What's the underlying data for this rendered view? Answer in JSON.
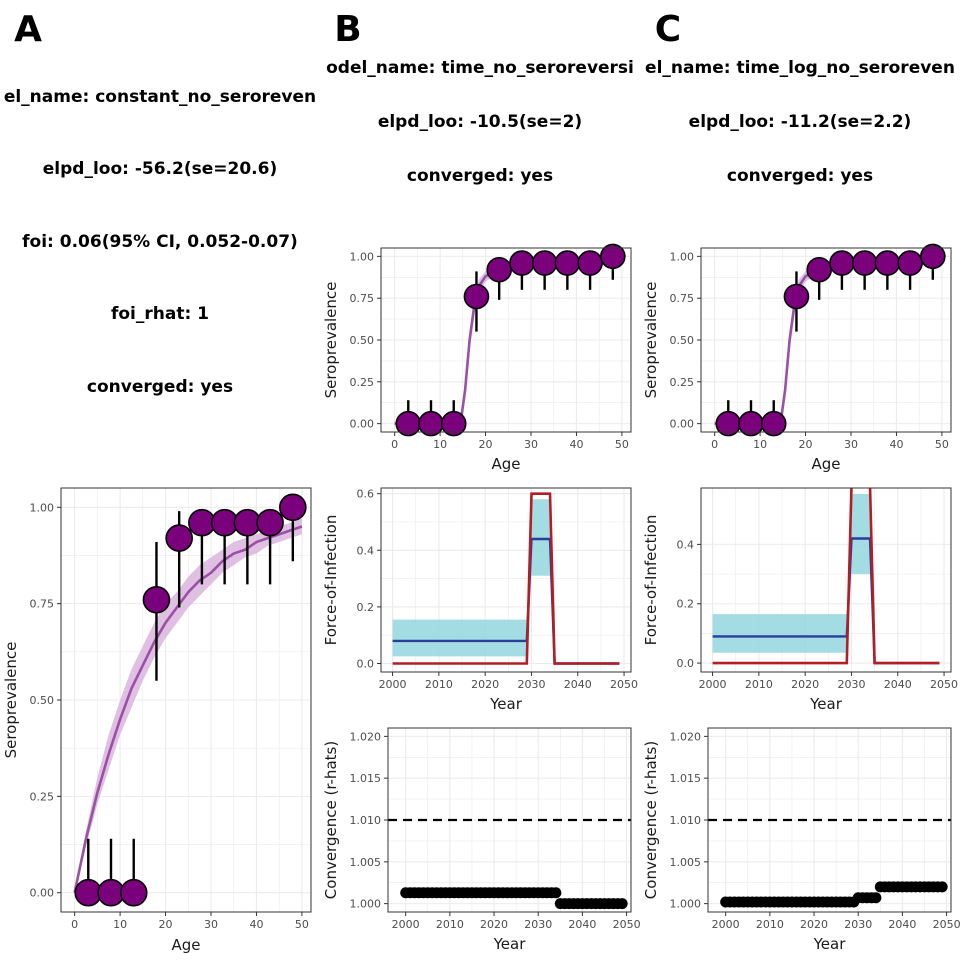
{
  "panels": [
    {
      "letter": "A",
      "info": [
        "el_name: constant_no_seroreven",
        "elpd_loo: -56.2(se=20.6)",
        "foi: 0.06(95% CI, 0.052-0.07)",
        "foi_rhat: 1",
        "converged: yes"
      ]
    },
    {
      "letter": "B",
      "info": [
        "odel_name: time_no_seroreversi",
        "elpd_loo: -10.5(se=2)",
        "converged: yes"
      ]
    },
    {
      "letter": "C",
      "info": [
        "el_name: time_log_no_seroreven",
        "elpd_loo: -11.2(se=2.2)",
        "converged: yes"
      ]
    }
  ],
  "colors": {
    "point_fill": "#7b007b",
    "fit_line": "#9b4fa5",
    "fit_ribbon": "#d9b5de",
    "foi_est": "#2a3d9a",
    "foi_ci": "#99d8e0",
    "foi_true": "#b21e24",
    "grid": "#ebebeb"
  },
  "chart_data": [
    {
      "id": "A-seroprevalence",
      "type": "scatter",
      "xlabel": "Age",
      "ylabel": "Seroprevalence",
      "xlim": [
        -3,
        52
      ],
      "ylim": [
        -0.05,
        1.05
      ],
      "xticks": [
        0,
        10,
        20,
        30,
        40,
        50
      ],
      "yticks": [
        0,
        0.25,
        0.5,
        0.75,
        1
      ],
      "ytick_labels": [
        "0.00",
        "0.25",
        "0.50",
        "0.75",
        "1.00"
      ],
      "grid": true,
      "points": {
        "x": [
          3,
          8,
          13,
          18,
          23,
          28,
          33,
          38,
          43,
          48
        ],
        "y": [
          0,
          0,
          0,
          0.76,
          0.92,
          0.96,
          0.96,
          0.96,
          0.96,
          1.0
        ],
        "lo": [
          0,
          0,
          0,
          0.55,
          0.74,
          0.8,
          0.8,
          0.8,
          0.8,
          0.86
        ],
        "hi": [
          0.14,
          0.14,
          0.14,
          0.91,
          0.99,
          0.99,
          0.99,
          0.99,
          0.99,
          1.0
        ]
      },
      "fit": {
        "x": [
          0,
          2.5,
          5,
          7.5,
          10,
          12.5,
          15,
          17.5,
          20,
          22.5,
          25,
          27.5,
          30,
          32.5,
          35,
          37.5,
          40,
          42.5,
          45,
          47.5,
          50
        ],
        "y": [
          0,
          0.14,
          0.26,
          0.36,
          0.45,
          0.53,
          0.59,
          0.65,
          0.7,
          0.74,
          0.78,
          0.81,
          0.83,
          0.86,
          0.88,
          0.89,
          0.91,
          0.92,
          0.93,
          0.94,
          0.95
        ],
        "lo": [
          0,
          0.12,
          0.23,
          0.32,
          0.41,
          0.48,
          0.55,
          0.61,
          0.66,
          0.7,
          0.74,
          0.77,
          0.8,
          0.83,
          0.85,
          0.87,
          0.88,
          0.9,
          0.91,
          0.92,
          0.93
        ],
        "hi": [
          0,
          0.16,
          0.3,
          0.41,
          0.5,
          0.58,
          0.64,
          0.7,
          0.75,
          0.78,
          0.82,
          0.85,
          0.87,
          0.89,
          0.91,
          0.92,
          0.93,
          0.94,
          0.95,
          0.96,
          0.97
        ]
      }
    },
    {
      "id": "B-seroprevalence",
      "type": "scatter",
      "xlabel": "Age",
      "ylabel": "Seroprevalence",
      "xlim": [
        -3,
        52
      ],
      "ylim": [
        -0.05,
        1.05
      ],
      "xticks": [
        0,
        10,
        20,
        30,
        40,
        50
      ],
      "yticks": [
        0,
        0.25,
        0.5,
        0.75,
        1
      ],
      "ytick_labels": [
        "0.00",
        "0.25",
        "0.50",
        "0.75",
        "1.00"
      ],
      "grid": true,
      "points": {
        "x": [
          3,
          8,
          13,
          18,
          23,
          28,
          33,
          38,
          43,
          48
        ],
        "y": [
          0,
          0,
          0,
          0.76,
          0.92,
          0.96,
          0.96,
          0.96,
          0.96,
          1.0
        ],
        "lo": [
          0,
          0,
          0,
          0.55,
          0.74,
          0.8,
          0.8,
          0.8,
          0.8,
          0.86
        ],
        "hi": [
          0.14,
          0.14,
          0.14,
          0.91,
          0.99,
          0.99,
          0.99,
          0.99,
          0.99,
          1.0
        ]
      },
      "fit": {
        "x": [
          0,
          14.5,
          15.5,
          16.5,
          17.5,
          18.5,
          20,
          22,
          25,
          30,
          40,
          50
        ],
        "y": [
          0,
          0,
          0.2,
          0.5,
          0.7,
          0.82,
          0.88,
          0.91,
          0.93,
          0.95,
          0.96,
          0.97
        ],
        "lo": [
          0,
          0,
          0.16,
          0.44,
          0.64,
          0.77,
          0.85,
          0.88,
          0.91,
          0.93,
          0.95,
          0.96
        ],
        "hi": [
          0,
          0,
          0.24,
          0.56,
          0.76,
          0.86,
          0.91,
          0.93,
          0.95,
          0.96,
          0.97,
          0.98
        ]
      }
    },
    {
      "id": "B-foi",
      "type": "line",
      "xlabel": "Year",
      "ylabel": "Force-of-Infection",
      "xlim": [
        1997.5,
        2051.5
      ],
      "ylim": [
        -0.03,
        0.62
      ],
      "xticks": [
        2000,
        2010,
        2020,
        2030,
        2040,
        2050
      ],
      "yticks": [
        0,
        0.2,
        0.4,
        0.6
      ],
      "ytick_labels": [
        "0.0",
        "0.2",
        "0.4",
        "0.6"
      ],
      "grid": true,
      "ci_ribbon": {
        "x": [
          2000,
          2029,
          2030,
          2034,
          2035,
          2049
        ],
        "lo": [
          0.025,
          0.025,
          0.31,
          0.31,
          0,
          0
        ],
        "hi": [
          0.155,
          0.155,
          0.58,
          0.58,
          0,
          0
        ]
      },
      "estimate": {
        "x": [
          2000,
          2029,
          2030,
          2034,
          2035,
          2049
        ],
        "y": [
          0.08,
          0.08,
          0.44,
          0.44,
          0,
          0
        ]
      },
      "true_foi": {
        "x": [
          2000,
          2029,
          2030,
          2034,
          2035,
          2049
        ],
        "y": [
          0,
          0,
          0.6,
          0.6,
          0,
          0
        ]
      }
    },
    {
      "id": "B-rhat",
      "type": "scatter",
      "xlabel": "Year",
      "ylabel": "Convergence (r-hats)",
      "xlim": [
        1996,
        2051
      ],
      "ylim": [
        0.999,
        1.021
      ],
      "xticks": [
        2000,
        2010,
        2020,
        2030,
        2040,
        2050
      ],
      "yticks": [
        1.0,
        1.005,
        1.01,
        1.015,
        1.02
      ],
      "ytick_labels": [
        "1.000",
        "1.005",
        "1.010",
        "1.015",
        "1.020"
      ],
      "grid": true,
      "threshold": 1.01,
      "segments": [
        {
          "from": 2000,
          "to": 2034,
          "value": 1.0013
        },
        {
          "from": 2035,
          "to": 2049,
          "value": 1.0
        }
      ]
    },
    {
      "id": "C-seroprevalence",
      "type": "scatter",
      "xlabel": "Age",
      "ylabel": "Seroprevalence",
      "xlim": [
        -3,
        52
      ],
      "ylim": [
        -0.05,
        1.05
      ],
      "xticks": [
        0,
        10,
        20,
        30,
        40,
        50
      ],
      "yticks": [
        0,
        0.25,
        0.5,
        0.75,
        1
      ],
      "ytick_labels": [
        "0.00",
        "0.25",
        "0.50",
        "0.75",
        "1.00"
      ],
      "grid": true,
      "points": {
        "x": [
          3,
          8,
          13,
          18,
          23,
          28,
          33,
          38,
          43,
          48
        ],
        "y": [
          0,
          0,
          0,
          0.76,
          0.92,
          0.96,
          0.96,
          0.96,
          0.96,
          1.0
        ],
        "lo": [
          0,
          0,
          0,
          0.55,
          0.74,
          0.8,
          0.8,
          0.8,
          0.8,
          0.86
        ],
        "hi": [
          0.14,
          0.14,
          0.14,
          0.91,
          0.99,
          0.99,
          0.99,
          0.99,
          0.99,
          1.0
        ]
      },
      "fit": {
        "x": [
          0,
          14.5,
          15.5,
          16.5,
          17.5,
          18.5,
          20,
          22,
          25,
          30,
          40,
          50
        ],
        "y": [
          0,
          0,
          0.2,
          0.5,
          0.7,
          0.82,
          0.88,
          0.91,
          0.93,
          0.95,
          0.96,
          0.97
        ],
        "lo": [
          0,
          0,
          0.16,
          0.44,
          0.64,
          0.77,
          0.85,
          0.88,
          0.91,
          0.93,
          0.95,
          0.96
        ],
        "hi": [
          0,
          0,
          0.24,
          0.56,
          0.76,
          0.86,
          0.91,
          0.93,
          0.95,
          0.96,
          0.97,
          0.98
        ]
      }
    },
    {
      "id": "C-foi",
      "type": "line",
      "xlabel": "Year",
      "ylabel": "Force-of-Infection",
      "xlim": [
        1997.5,
        2051.5
      ],
      "ylim": [
        -0.03,
        0.59
      ],
      "xticks": [
        2000,
        2010,
        2020,
        2030,
        2040,
        2050
      ],
      "yticks": [
        0,
        0.2,
        0.4
      ],
      "ytick_labels": [
        "0.0",
        "0.2",
        "0.4"
      ],
      "grid": true,
      "ci_ribbon": {
        "x": [
          2000,
          2029,
          2030,
          2034,
          2035,
          2049
        ],
        "lo": [
          0.035,
          0.035,
          0.3,
          0.3,
          0,
          0
        ],
        "hi": [
          0.165,
          0.165,
          0.57,
          0.57,
          0,
          0
        ]
      },
      "estimate": {
        "x": [
          2000,
          2029,
          2030,
          2034,
          2035,
          2049
        ],
        "y": [
          0.09,
          0.09,
          0.42,
          0.42,
          0,
          0
        ]
      },
      "true_foi": {
        "x": [
          2000,
          2029,
          2030,
          2034,
          2035,
          2049
        ],
        "y": [
          0,
          0,
          0.6,
          0.6,
          0,
          0
        ]
      }
    },
    {
      "id": "C-rhat",
      "type": "scatter",
      "xlabel": "Year",
      "ylabel": "Convergence (r-hats)",
      "xlim": [
        1996,
        2051
      ],
      "ylim": [
        0.999,
        1.021
      ],
      "xticks": [
        2000,
        2010,
        2020,
        2030,
        2040,
        2050
      ],
      "yticks": [
        1.0,
        1.005,
        1.01,
        1.015,
        1.02
      ],
      "ytick_labels": [
        "1.000",
        "1.005",
        "1.010",
        "1.015",
        "1.020"
      ],
      "grid": true,
      "threshold": 1.01,
      "segments": [
        {
          "from": 2000,
          "to": 2029,
          "value": 1.0002
        },
        {
          "from": 2030,
          "to": 2034,
          "value": 1.0007
        },
        {
          "from": 2035,
          "to": 2049,
          "value": 1.002
        }
      ]
    }
  ]
}
